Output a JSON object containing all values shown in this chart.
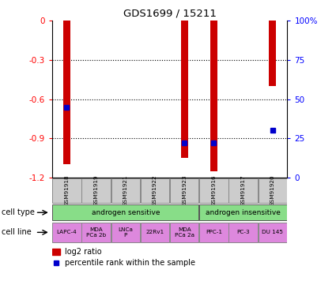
{
  "title": "GDS1699 / 15211",
  "samples": [
    "GSM91918",
    "GSM91919",
    "GSM91921",
    "GSM91922",
    "GSM91923",
    "GSM91916",
    "GSM91917",
    "GSM91920"
  ],
  "log2_ratio": [
    -1.1,
    0.0,
    0.0,
    0.0,
    -1.05,
    -1.15,
    0.0,
    -0.5
  ],
  "percentile_rank_pct": [
    45,
    0,
    0,
    0,
    22,
    22,
    0,
    30
  ],
  "ylim_left": [
    -1.2,
    0
  ],
  "ylim_right": [
    0,
    100
  ],
  "yticks_left": [
    0,
    -0.3,
    -0.6,
    -0.9,
    -1.2
  ],
  "yticks_right": [
    0,
    25,
    50,
    75,
    100
  ],
  "cell_type_sensitive_count": 5,
  "cell_type_insensitive_count": 3,
  "cell_lines": [
    "LAPC-4",
    "MDA\nPCa 2b",
    "LNCa\nP",
    "22Rv1",
    "MDA\nPCa 2a",
    "PPC-1",
    "PC-3",
    "DU 145"
  ],
  "cell_line_color": "#dd88dd",
  "cell_type_color": "#88dd88",
  "sample_box_color": "#cccccc",
  "bar_color": "#cc0000",
  "dot_color": "#0000cc",
  "legend_bar_label": "log2 ratio",
  "legend_dot_label": "percentile rank within the sample",
  "cell_type_label": "cell type",
  "cell_line_label": "cell line",
  "gridline_yticks": [
    -0.3,
    -0.6,
    -0.9
  ],
  "bar_width": 0.25
}
